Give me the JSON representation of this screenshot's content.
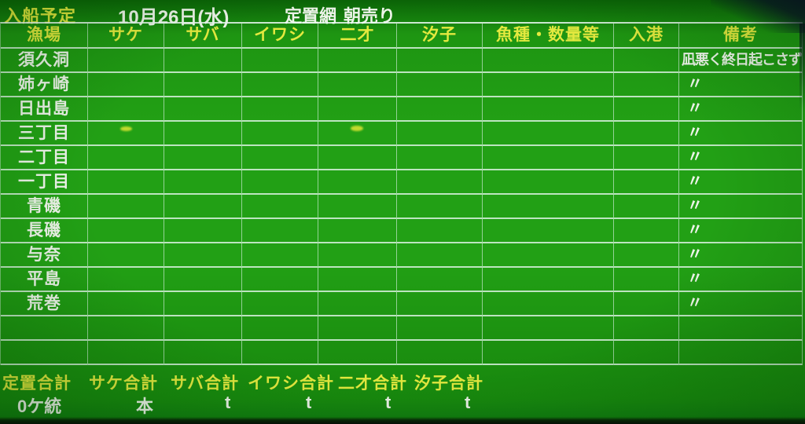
{
  "title_bar": {
    "title": "入船予定",
    "date": "10月26日(水)",
    "net_type": "定置網",
    "sale_label": "朝売り"
  },
  "table": {
    "headers": [
      "漁場",
      "サケ",
      "サバ",
      "イワシ",
      "二才",
      "汐子",
      "魚種・数量等",
      "入港",
      "備考"
    ],
    "rows": [
      {
        "label": "須久洞",
        "remark": "凪悪く終日起こさず"
      },
      {
        "label": "姉ヶ崎",
        "remark": "〃"
      },
      {
        "label": "日出島",
        "remark": "〃"
      },
      {
        "label": "三丁目",
        "remark": "〃"
      },
      {
        "label": "二丁目",
        "remark": "〃"
      },
      {
        "label": "一丁目",
        "remark": "〃"
      },
      {
        "label": "青磯",
        "remark": "〃"
      },
      {
        "label": "長磯",
        "remark": "〃"
      },
      {
        "label": "与奈",
        "remark": "〃"
      },
      {
        "label": "平島",
        "remark": "〃"
      },
      {
        "label": "荒巻",
        "remark": "〃"
      },
      {
        "label": "",
        "remark": ""
      },
      {
        "label": "",
        "remark": ""
      }
    ]
  },
  "summary": {
    "labels": [
      "定置合計",
      "サケ合計",
      "サバ合計",
      "イワシ合計",
      "二才合計",
      "汐子合計"
    ],
    "values": [
      "0ケ統",
      "本",
      "t",
      "t",
      "t",
      "t"
    ]
  },
  "colors": {
    "board_green": "#22a015",
    "accent_yellow": "#e4e93f",
    "text_white": "#eef4ea",
    "grid_line": "#e9f9f1"
  }
}
